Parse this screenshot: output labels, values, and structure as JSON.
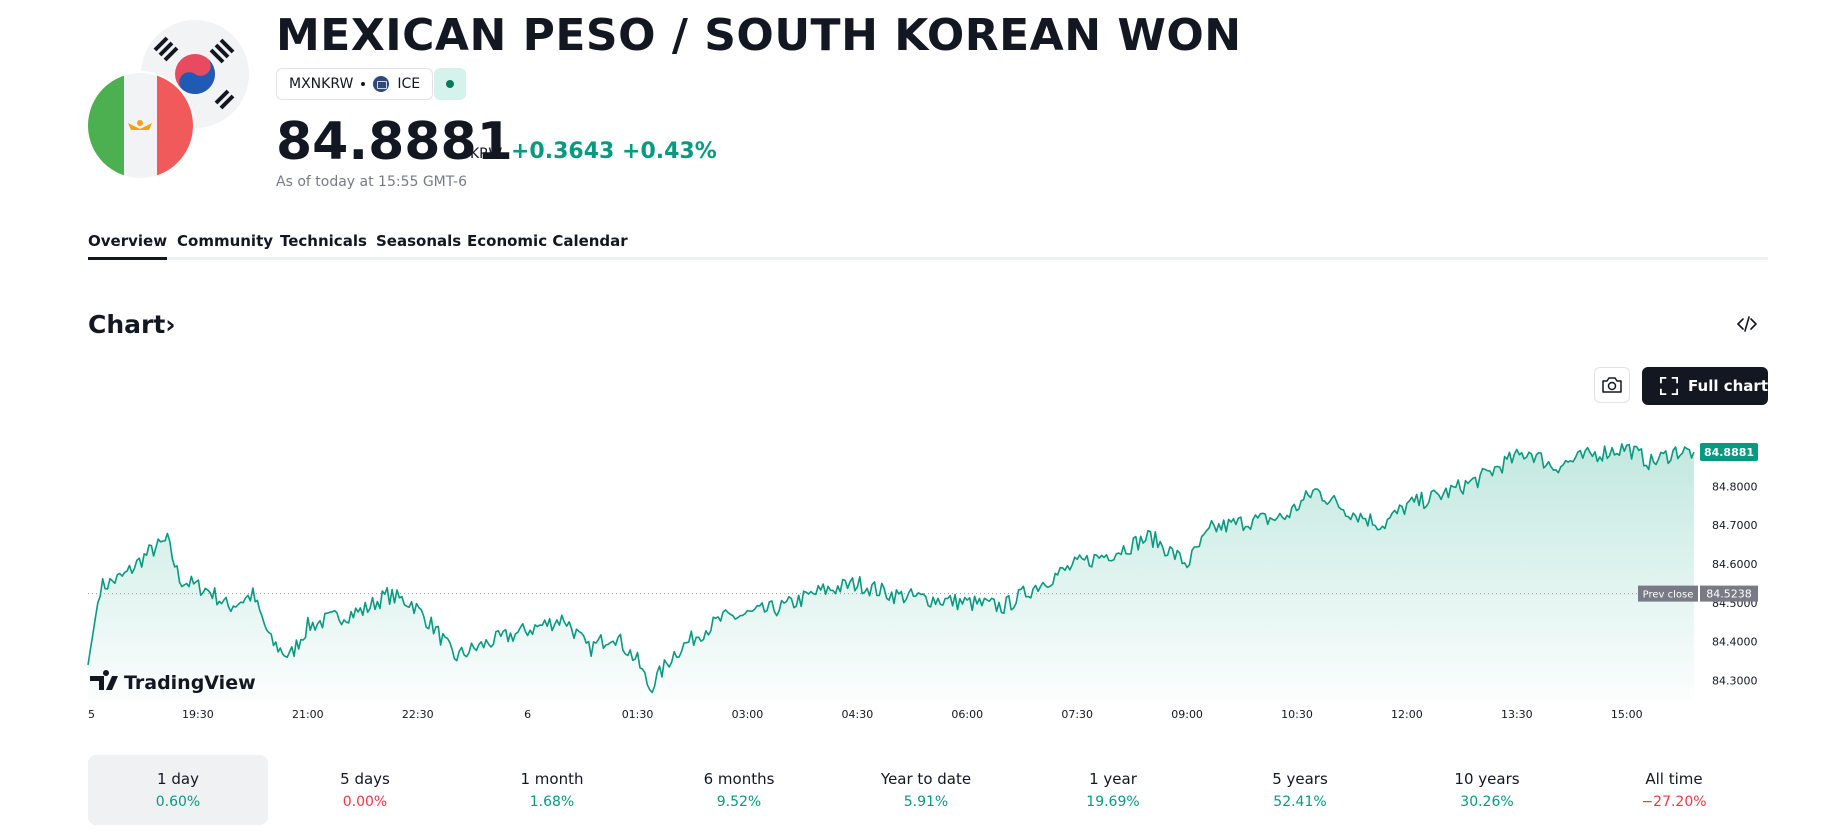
{
  "header": {
    "title": "MEXICAN PESO / SOUTH KOREAN WON",
    "ticker": "MXNKRW",
    "exchange": "ICE",
    "price": "84.8881",
    "currency": "KRW",
    "change_abs": "+0.3643",
    "change_pct": "+0.43%",
    "as_of": "As of today at 15:55 GMT-6",
    "flags": [
      "mexico-flag",
      "south-korea-flag"
    ],
    "status_color": "#0b7a5c"
  },
  "tabs": [
    {
      "label": "Overview",
      "active": true
    },
    {
      "label": "Community",
      "active": false
    },
    {
      "label": "Technicals",
      "active": false
    },
    {
      "label": "Seasonals",
      "active": false
    },
    {
      "label": "Economic Calendar",
      "active": false
    }
  ],
  "chart_section": {
    "title": "Chart",
    "chevron": "›",
    "embed_icon": "code-icon",
    "snapshot_icon": "camera-icon",
    "full_chart_label": "Full chart",
    "full_chart_icon": "fullscreen-icon",
    "watermark": "TradingView"
  },
  "chart_data": {
    "type": "area",
    "line_color": "#089981",
    "fill_color": "#b7e4da",
    "ylim": [
      84.25,
      84.95
    ],
    "y_ticks": [
      "84.8000",
      "84.7000",
      "84.6000",
      "84.5000",
      "84.4000",
      "84.3000"
    ],
    "x_ticks": [
      "5",
      "19:30",
      "21:00",
      "22:30",
      "6",
      "01:30",
      "03:00",
      "04:30",
      "06:00",
      "07:30",
      "09:00",
      "10:30",
      "12:00",
      "13:30",
      "15:00"
    ],
    "last_value": "84.8881",
    "prev_close_label": "Prev close",
    "prev_close_value": "84.5238",
    "series": [
      {
        "points": [
          [
            "5 18:00",
            84.34
          ],
          [
            "5 18:10",
            84.54
          ],
          [
            "5 18:30",
            84.57
          ],
          [
            "5 18:50",
            84.63
          ],
          [
            "5 19:05",
            84.66
          ],
          [
            "5 19:15",
            84.56
          ],
          [
            "5 19:40",
            84.53
          ],
          [
            "5 19:55",
            84.49
          ],
          [
            "5 20:15",
            84.52
          ],
          [
            "5 20:30",
            84.4
          ],
          [
            "5 20:45",
            84.36
          ],
          [
            "5 21:00",
            84.44
          ],
          [
            "5 21:20",
            84.46
          ],
          [
            "5 21:45",
            84.48
          ],
          [
            "5 22:05",
            84.52
          ],
          [
            "5 22:25",
            84.5
          ],
          [
            "5 22:45",
            84.43
          ],
          [
            "5 23:00",
            84.36
          ],
          [
            "5 23:30",
            84.4
          ],
          [
            "6 00:00",
            84.43
          ],
          [
            "6 00:30",
            84.46
          ],
          [
            "6 00:50",
            84.38
          ],
          [
            "6 01:10",
            84.42
          ],
          [
            "6 01:30",
            84.35
          ],
          [
            "6 01:40",
            84.28
          ],
          [
            "6 02:00",
            84.37
          ],
          [
            "6 02:20",
            84.42
          ],
          [
            "6 02:40",
            84.46
          ],
          [
            "6 03:00",
            84.47
          ],
          [
            "6 03:30",
            84.49
          ],
          [
            "6 04:00",
            84.53
          ],
          [
            "6 04:30",
            84.55
          ],
          [
            "6 05:00",
            84.52
          ],
          [
            "6 05:30",
            84.51
          ],
          [
            "6 06:00",
            84.5
          ],
          [
            "6 06:30",
            84.49
          ],
          [
            "6 07:00",
            84.55
          ],
          [
            "6 07:30",
            84.6
          ],
          [
            "6 08:00",
            84.63
          ],
          [
            "6 08:30",
            84.67
          ],
          [
            "6 09:00",
            84.6
          ],
          [
            "6 09:20",
            84.69
          ],
          [
            "6 09:50",
            84.71
          ],
          [
            "6 10:20",
            84.72
          ],
          [
            "6 10:45",
            84.79
          ],
          [
            "6 11:10",
            84.74
          ],
          [
            "6 11:40",
            84.7
          ],
          [
            "6 12:00",
            84.75
          ],
          [
            "6 12:30",
            84.78
          ],
          [
            "6 13:00",
            84.82
          ],
          [
            "6 13:20",
            84.86
          ],
          [
            "6 13:40",
            84.89
          ],
          [
            "6 14:00",
            84.85
          ],
          [
            "6 14:30",
            84.88
          ],
          [
            "6 15:00",
            84.9
          ],
          [
            "6 15:20",
            84.86
          ],
          [
            "6 15:40",
            84.89
          ],
          [
            "6 15:55",
            84.8881
          ]
        ]
      }
    ],
    "grid": false
  },
  "performance": [
    {
      "label": "1 day",
      "value": "0.60%",
      "trend": "up",
      "active": true
    },
    {
      "label": "5 days",
      "value": "0.00%",
      "trend": "down",
      "active": false
    },
    {
      "label": "1 month",
      "value": "1.68%",
      "trend": "up",
      "active": false
    },
    {
      "label": "6 months",
      "value": "9.52%",
      "trend": "up",
      "active": false
    },
    {
      "label": "Year to date",
      "value": "5.91%",
      "trend": "up",
      "active": false
    },
    {
      "label": "1 year",
      "value": "19.69%",
      "trend": "up",
      "active": false
    },
    {
      "label": "5 years",
      "value": "52.41%",
      "trend": "up",
      "active": false
    },
    {
      "label": "10 years",
      "value": "30.26%",
      "trend": "up",
      "active": false
    },
    {
      "label": "All time",
      "value": "−27.20%",
      "trend": "down",
      "active": false
    }
  ]
}
